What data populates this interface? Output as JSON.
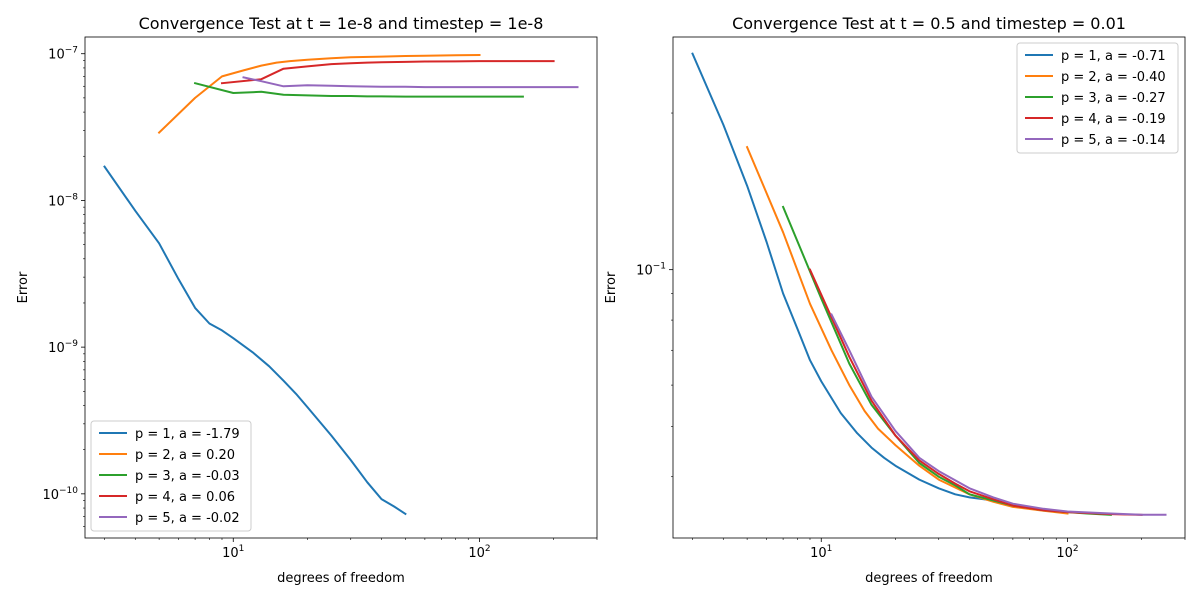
{
  "chart_data": [
    {
      "type": "line",
      "title": "Convergence Test at t = 1e-8 and timestep = 1e-8",
      "xlabel": "degrees of freedom",
      "ylabel": "Error",
      "xscale": "log",
      "yscale": "log",
      "xlim": [
        2.5,
        300
      ],
      "ylim": [
        5e-11,
        1.3e-07
      ],
      "xticks": [
        {
          "value": 10,
          "base": "10",
          "exp": "1"
        },
        {
          "value": 100,
          "base": "10",
          "exp": "2"
        }
      ],
      "yticks": [
        {
          "value": 1e-10,
          "base": "10",
          "exp": "−10"
        },
        {
          "value": 1e-09,
          "base": "10",
          "exp": "−9"
        },
        {
          "value": 1e-08,
          "base": "10",
          "exp": "−8"
        },
        {
          "value": 1e-07,
          "base": "10",
          "exp": "−7"
        }
      ],
      "legend_position": "lower-left",
      "series": [
        {
          "name": "p = 1, a = -1.79",
          "color": "#1f77b4",
          "x": [
            3,
            4,
            5,
            6,
            7,
            8,
            9,
            10,
            12,
            14,
            16,
            18,
            20,
            25,
            30,
            35,
            40,
            45,
            50
          ],
          "y": [
            1.7e-08,
            8.5e-09,
            5.1e-09,
            2.9e-09,
            1.85e-09,
            1.45e-09,
            1.3e-09,
            1.15e-09,
            9.2e-10,
            7.4e-10,
            5.9e-10,
            4.8e-10,
            3.9e-10,
            2.5e-10,
            1.7e-10,
            1.2e-10,
            9.2e-11,
            8.2e-11,
            7.3e-11
          ]
        },
        {
          "name": "p = 2, a = 0.20",
          "color": "#ff7f0e",
          "x": [
            5,
            7,
            9,
            11,
            13,
            15,
            17,
            20,
            25,
            30,
            40,
            50,
            60,
            80,
            100
          ],
          "y": [
            2.9e-08,
            5e-08,
            7e-08,
            7.7e-08,
            8.3e-08,
            8.7e-08,
            8.9e-08,
            9.1e-08,
            9.3e-08,
            9.45e-08,
            9.55e-08,
            9.65e-08,
            9.7e-08,
            9.75e-08,
            9.8e-08
          ]
        },
        {
          "name": "p = 3, a = -0.03",
          "color": "#2ca02c",
          "x": [
            7,
            10,
            13,
            16,
            20,
            25,
            30,
            35,
            40,
            50,
            60,
            80,
            100,
            120,
            150
          ],
          "y": [
            6.3e-08,
            5.4e-08,
            5.5e-08,
            5.25e-08,
            5.2e-08,
            5.15e-08,
            5.15e-08,
            5.12e-08,
            5.12e-08,
            5.1e-08,
            5.1e-08,
            5.1e-08,
            5.1e-08,
            5.1e-08,
            5.1e-08
          ]
        },
        {
          "name": "p = 4, a = 0.06",
          "color": "#d62728",
          "x": [
            9,
            13,
            16,
            20,
            25,
            30,
            35,
            40,
            50,
            60,
            80,
            100,
            150,
            200
          ],
          "y": [
            6.3e-08,
            6.7e-08,
            7.9e-08,
            8.2e-08,
            8.5e-08,
            8.6e-08,
            8.7e-08,
            8.75e-08,
            8.8e-08,
            8.85e-08,
            8.87e-08,
            8.9e-08,
            8.9e-08,
            8.9e-08
          ]
        },
        {
          "name": "p = 5, a = -0.02",
          "color": "#9467bd",
          "x": [
            11,
            13,
            16,
            20,
            25,
            30,
            40,
            50,
            60,
            80,
            100,
            150,
            200,
            250
          ],
          "y": [
            6.9e-08,
            6.5e-08,
            6e-08,
            6.1e-08,
            6.05e-08,
            6e-08,
            5.95e-08,
            5.95e-08,
            5.92e-08,
            5.92e-08,
            5.92e-08,
            5.92e-08,
            5.92e-08,
            5.92e-08
          ]
        }
      ]
    },
    {
      "type": "line",
      "title": "Convergence Test at t = 0.5 and timestep = 0.01",
      "xlabel": "degrees of freedom",
      "ylabel": "Error",
      "xscale": "log",
      "yscale": "log",
      "xlim": [
        2.5,
        300
      ],
      "ylim": [
        0.0305,
        0.28
      ],
      "xticks": [
        {
          "value": 10,
          "base": "10",
          "exp": "1"
        },
        {
          "value": 100,
          "base": "10",
          "exp": "2"
        }
      ],
      "yticks": [
        {
          "value": 0.1,
          "base": "10",
          "exp": "−1"
        }
      ],
      "legend_position": "upper-right",
      "series": [
        {
          "name": "p = 1, a = -0.71",
          "color": "#1f77b4",
          "x": [
            3,
            4,
            5,
            6,
            7,
            8,
            9,
            10,
            12,
            14,
            16,
            18,
            20,
            25,
            30,
            35,
            40,
            50
          ],
          "y": [
            0.26,
            0.19,
            0.145,
            0.113,
            0.09,
            0.077,
            0.067,
            0.061,
            0.053,
            0.0485,
            0.0455,
            0.0435,
            0.042,
            0.0395,
            0.038,
            0.037,
            0.0365,
            0.036
          ]
        },
        {
          "name": "p = 2, a = -0.40",
          "color": "#ff7f0e",
          "x": [
            5,
            7,
            9,
            11,
            13,
            15,
            17,
            20,
            25,
            30,
            40,
            50,
            60,
            80,
            100
          ],
          "y": [
            0.172,
            0.118,
            0.086,
            0.07,
            0.06,
            0.0535,
            0.0495,
            0.046,
            0.042,
            0.0395,
            0.037,
            0.0358,
            0.035,
            0.0344,
            0.034
          ]
        },
        {
          "name": "p = 3, a = -0.27",
          "color": "#2ca02c",
          "x": [
            7,
            10,
            13,
            16,
            20,
            25,
            30,
            35,
            40,
            50,
            60,
            80,
            100,
            120,
            150
          ],
          "y": [
            0.132,
            0.088,
            0.066,
            0.055,
            0.048,
            0.0425,
            0.04,
            0.0385,
            0.037,
            0.036,
            0.0352,
            0.0345,
            0.0342,
            0.034,
            0.0338
          ]
        },
        {
          "name": "p = 4, a = -0.19",
          "color": "#d62728",
          "x": [
            9,
            13,
            16,
            20,
            25,
            30,
            35,
            40,
            50,
            60,
            80,
            100,
            150,
            200
          ],
          "y": [
            0.1,
            0.068,
            0.056,
            0.048,
            0.043,
            0.0405,
            0.0388,
            0.0375,
            0.0362,
            0.0352,
            0.0345,
            0.0342,
            0.0339,
            0.0338
          ]
        },
        {
          "name": "p = 5, a = -0.14",
          "color": "#9467bd",
          "x": [
            11,
            13,
            16,
            20,
            25,
            30,
            40,
            50,
            60,
            80,
            100,
            150,
            200,
            250
          ],
          "y": [
            0.082,
            0.07,
            0.057,
            0.049,
            0.0435,
            0.041,
            0.038,
            0.0365,
            0.0355,
            0.0347,
            0.0343,
            0.034,
            0.0338,
            0.0338
          ]
        }
      ]
    }
  ]
}
